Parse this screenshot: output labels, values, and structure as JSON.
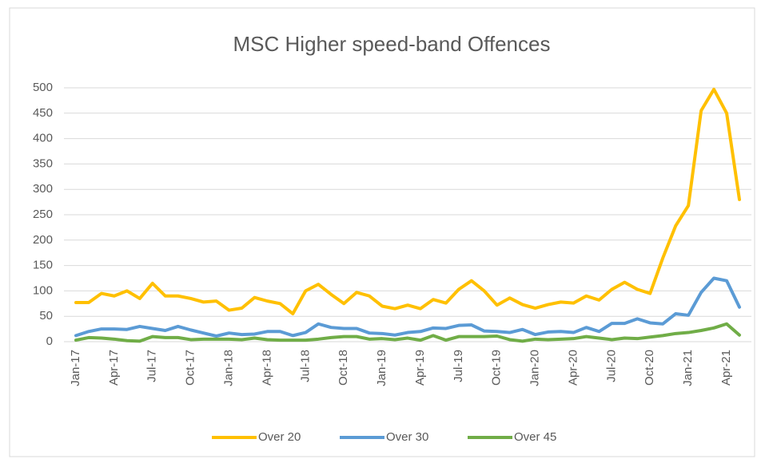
{
  "chart_data": {
    "type": "line",
    "title": "MSC Higher speed-band Offences",
    "categories": [
      "Jan-17",
      null,
      null,
      "Apr-17",
      null,
      null,
      "Jul-17",
      null,
      null,
      "Oct-17",
      null,
      null,
      "Jan-18",
      null,
      null,
      "Apr-18",
      null,
      null,
      "Jul-18",
      null,
      null,
      "Oct-18",
      null,
      null,
      "Jan-19",
      null,
      null,
      "Apr-19",
      null,
      null,
      "Jul-19",
      null,
      null,
      "Oct-19",
      null,
      null,
      "Jan-20",
      null,
      null,
      "Apr-20",
      null,
      null,
      "Jul-20",
      null,
      null,
      "Oct-20",
      null,
      null,
      "Jan-21",
      null,
      null,
      "Apr-21",
      null
    ],
    "series": [
      {
        "name": "Over 20",
        "color": "#ffc000",
        "values": [
          77,
          77,
          95,
          90,
          100,
          85,
          115,
          90,
          90,
          85,
          78,
          80,
          62,
          66,
          87,
          80,
          75,
          55,
          100,
          113,
          93,
          75,
          97,
          90,
          70,
          65,
          72,
          65,
          83,
          76,
          103,
          120,
          100,
          72,
          86,
          73,
          66,
          73,
          78,
          76,
          90,
          82,
          103,
          117,
          103,
          95,
          165,
          228,
          268,
          455,
          497,
          450,
          280
        ]
      },
      {
        "name": "Over 30",
        "color": "#5b9bd5",
        "values": [
          12,
          20,
          25,
          25,
          24,
          30,
          26,
          22,
          30,
          23,
          17,
          11,
          17,
          14,
          15,
          20,
          20,
          12,
          18,
          35,
          28,
          26,
          26,
          17,
          16,
          13,
          18,
          20,
          27,
          26,
          32,
          33,
          21,
          20,
          18,
          24,
          14,
          19,
          20,
          18,
          28,
          20,
          36,
          36,
          45,
          37,
          35,
          55,
          52,
          97,
          125,
          120,
          68
        ]
      },
      {
        "name": "Over 45",
        "color": "#70ad47",
        "values": [
          3,
          8,
          7,
          5,
          2,
          1,
          10,
          8,
          8,
          4,
          5,
          5,
          5,
          4,
          7,
          4,
          3,
          3,
          3,
          5,
          8,
          10,
          10,
          5,
          6,
          4,
          7,
          3,
          12,
          3,
          10,
          10,
          10,
          11,
          4,
          1,
          5,
          4,
          5,
          6,
          10,
          7,
          4,
          7,
          6,
          9,
          12,
          16,
          18,
          22,
          27,
          35,
          13
        ]
      }
    ],
    "ylim": [
      0,
      500
    ],
    "yticks": [
      0,
      50,
      100,
      150,
      200,
      250,
      300,
      350,
      400,
      450,
      500
    ],
    "grid": true,
    "legend": "bottom"
  }
}
